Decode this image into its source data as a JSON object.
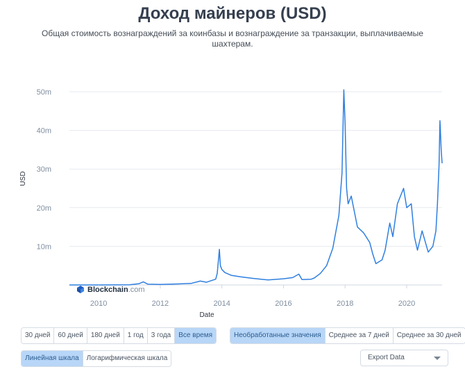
{
  "title": "Доход майнеров (USD)",
  "subtitle": "Общая стоимость вознаграждений за коинбазы и вознаграждение за транзакции, выплачиваемые шахтерам.",
  "watermark": {
    "brand": "Blockchain",
    "suffix": ".com"
  },
  "period_buttons": [
    "30 дней",
    "60 дней",
    "180 дней",
    "1 год",
    "3 года",
    "Все время"
  ],
  "period_active": "Все время",
  "average_buttons": [
    "Необработанные значения",
    "Среднее за 7 дней",
    "Среднее за 30 дней"
  ],
  "average_active": "Необработанные значения",
  "scale_buttons": [
    "Линейная шкала",
    "Логарифмическая шкала"
  ],
  "scale_active": "Линейная шкала",
  "export_label": "Export Data",
  "colors": {
    "line": "#2f7fe0",
    "active_button": "#b8d6f7",
    "grid": "#e6eaf0"
  },
  "chart_data": {
    "type": "line",
    "xlabel": "Date",
    "ylabel": "USD",
    "x_ticks": [
      "2010",
      "2012",
      "2014",
      "2016",
      "2018",
      "2020"
    ],
    "y_ticks": [
      "10m",
      "20m",
      "30m",
      "40m",
      "50m"
    ],
    "xlim": [
      2009.05,
      2021.15
    ],
    "ylim": [
      0,
      50000000
    ],
    "grid": "horizontal",
    "series": [
      {
        "x": [
          2009.05,
          2010.0,
          2010.5,
          2011.0,
          2011.3,
          2011.45,
          2011.6,
          2012.0,
          2012.5,
          2013.0,
          2013.3,
          2013.5,
          2013.8,
          2013.85,
          2013.92,
          2013.95,
          2014.0,
          2014.1,
          2014.3,
          2014.6,
          2015.0,
          2015.5,
          2016.0,
          2016.3,
          2016.5,
          2016.6,
          2016.9,
          2017.0,
          2017.2,
          2017.4,
          2017.6,
          2017.8,
          2017.9,
          2017.96,
          2018.0,
          2018.05,
          2018.1,
          2018.2,
          2018.4,
          2018.6,
          2018.8,
          2018.9,
          2019.0,
          2019.2,
          2019.3,
          2019.45,
          2019.55,
          2019.7,
          2019.9,
          2020.0,
          2020.15,
          2020.25,
          2020.35,
          2020.5,
          2020.7,
          2020.85,
          2020.95,
          2021.0,
          2021.05,
          2021.08,
          2021.12,
          2021.15
        ],
        "y": [
          0,
          5000,
          20000,
          50000,
          300000,
          800000,
          200000,
          150000,
          250000,
          400000,
          1000000,
          700000,
          1500000,
          3000000,
          9200000,
          5000000,
          4000000,
          3200000,
          2500000,
          2100000,
          1700000,
          1300000,
          1600000,
          1900000,
          2800000,
          1400000,
          1500000,
          1800000,
          3000000,
          5000000,
          9500000,
          18000000,
          29000000,
          50500000,
          42000000,
          25000000,
          21000000,
          23000000,
          15000000,
          13500000,
          11000000,
          8000000,
          5500000,
          6500000,
          9000000,
          16000000,
          12500000,
          21000000,
          25000000,
          20000000,
          21000000,
          12500000,
          9000000,
          14000000,
          8500000,
          10000000,
          14000000,
          21000000,
          31000000,
          42500000,
          35000000,
          31500000
        ]
      }
    ]
  }
}
